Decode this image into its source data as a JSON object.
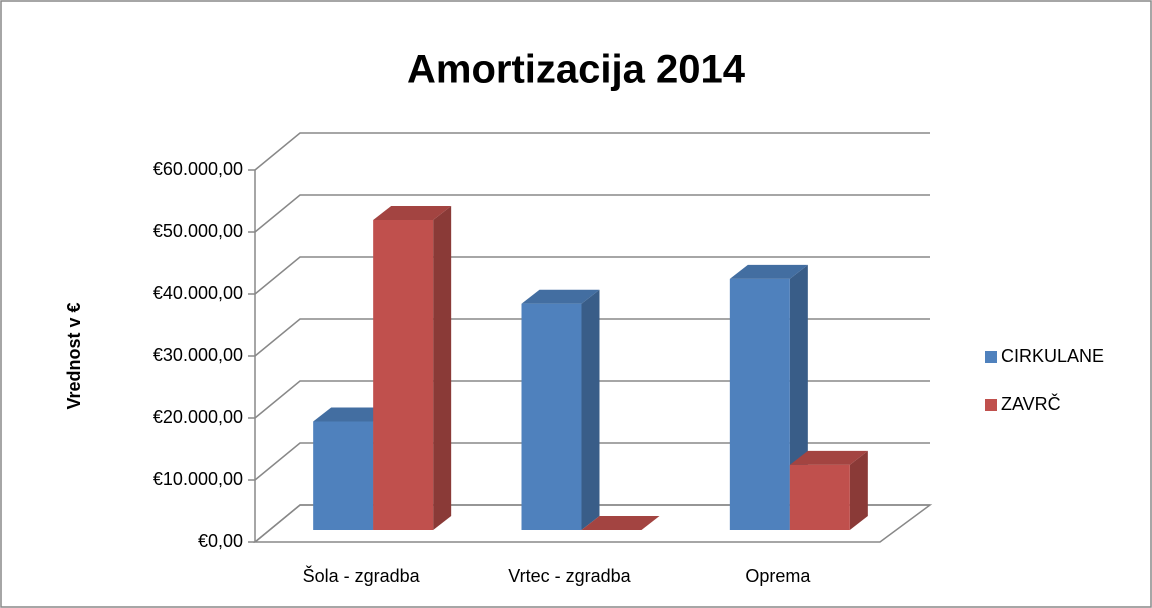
{
  "chart_data": {
    "type": "bar3d",
    "title": "Amortizacija 2014",
    "y_label": "Vrednost v €",
    "categories": [
      "Šola - zgradba",
      "Vrtec - zgradba",
      "Oprema"
    ],
    "series": [
      {
        "name": "CIRKULANE",
        "color": "#4f81bd",
        "values": [
          17500,
          36500,
          40500
        ]
      },
      {
        "name": "ZAVRČ",
        "color": "#c0504d",
        "values": [
          50000,
          0,
          10500
        ]
      }
    ],
    "ylim": [
      0,
      60000
    ],
    "yticks": [
      {
        "value": 0,
        "label": "€0,00"
      },
      {
        "value": 10000,
        "label": "€10.000,00"
      },
      {
        "value": 20000,
        "label": "€20.000,00"
      },
      {
        "value": 30000,
        "label": "€30.000,00"
      },
      {
        "value": 40000,
        "label": "€40.000,00"
      },
      {
        "value": 50000,
        "label": "€50.000,00"
      },
      {
        "value": 60000,
        "label": "€60.000,00"
      }
    ],
    "grid": true,
    "legend": "right"
  }
}
